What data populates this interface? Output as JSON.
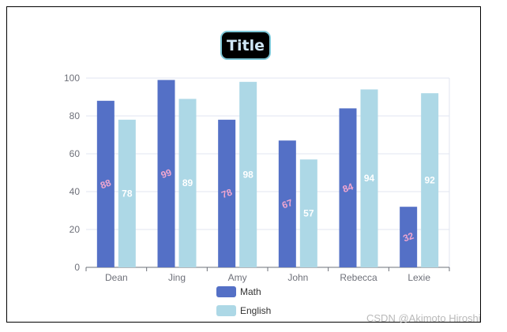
{
  "chart_data": {
    "type": "bar",
    "title": "Title",
    "categories": [
      "Dean",
      "Jing",
      "Amy",
      "John",
      "Rebecca",
      "Lexie"
    ],
    "series": [
      {
        "name": "Math",
        "values": [
          88,
          99,
          78,
          67,
          84,
          32
        ],
        "color": "#5470c6",
        "label_color": "#f0a6cf"
      },
      {
        "name": "English",
        "values": [
          78,
          89,
          98,
          57,
          94,
          92
        ],
        "color": "#add8e6",
        "label_color": "#ffffff"
      }
    ],
    "ylim": [
      0,
      100
    ],
    "yticks": [
      0,
      20,
      40,
      60,
      80,
      100
    ],
    "grid": true,
    "legend_placement": "bottom-center"
  },
  "watermark": "CSDN @Akimoto Hiroshi"
}
